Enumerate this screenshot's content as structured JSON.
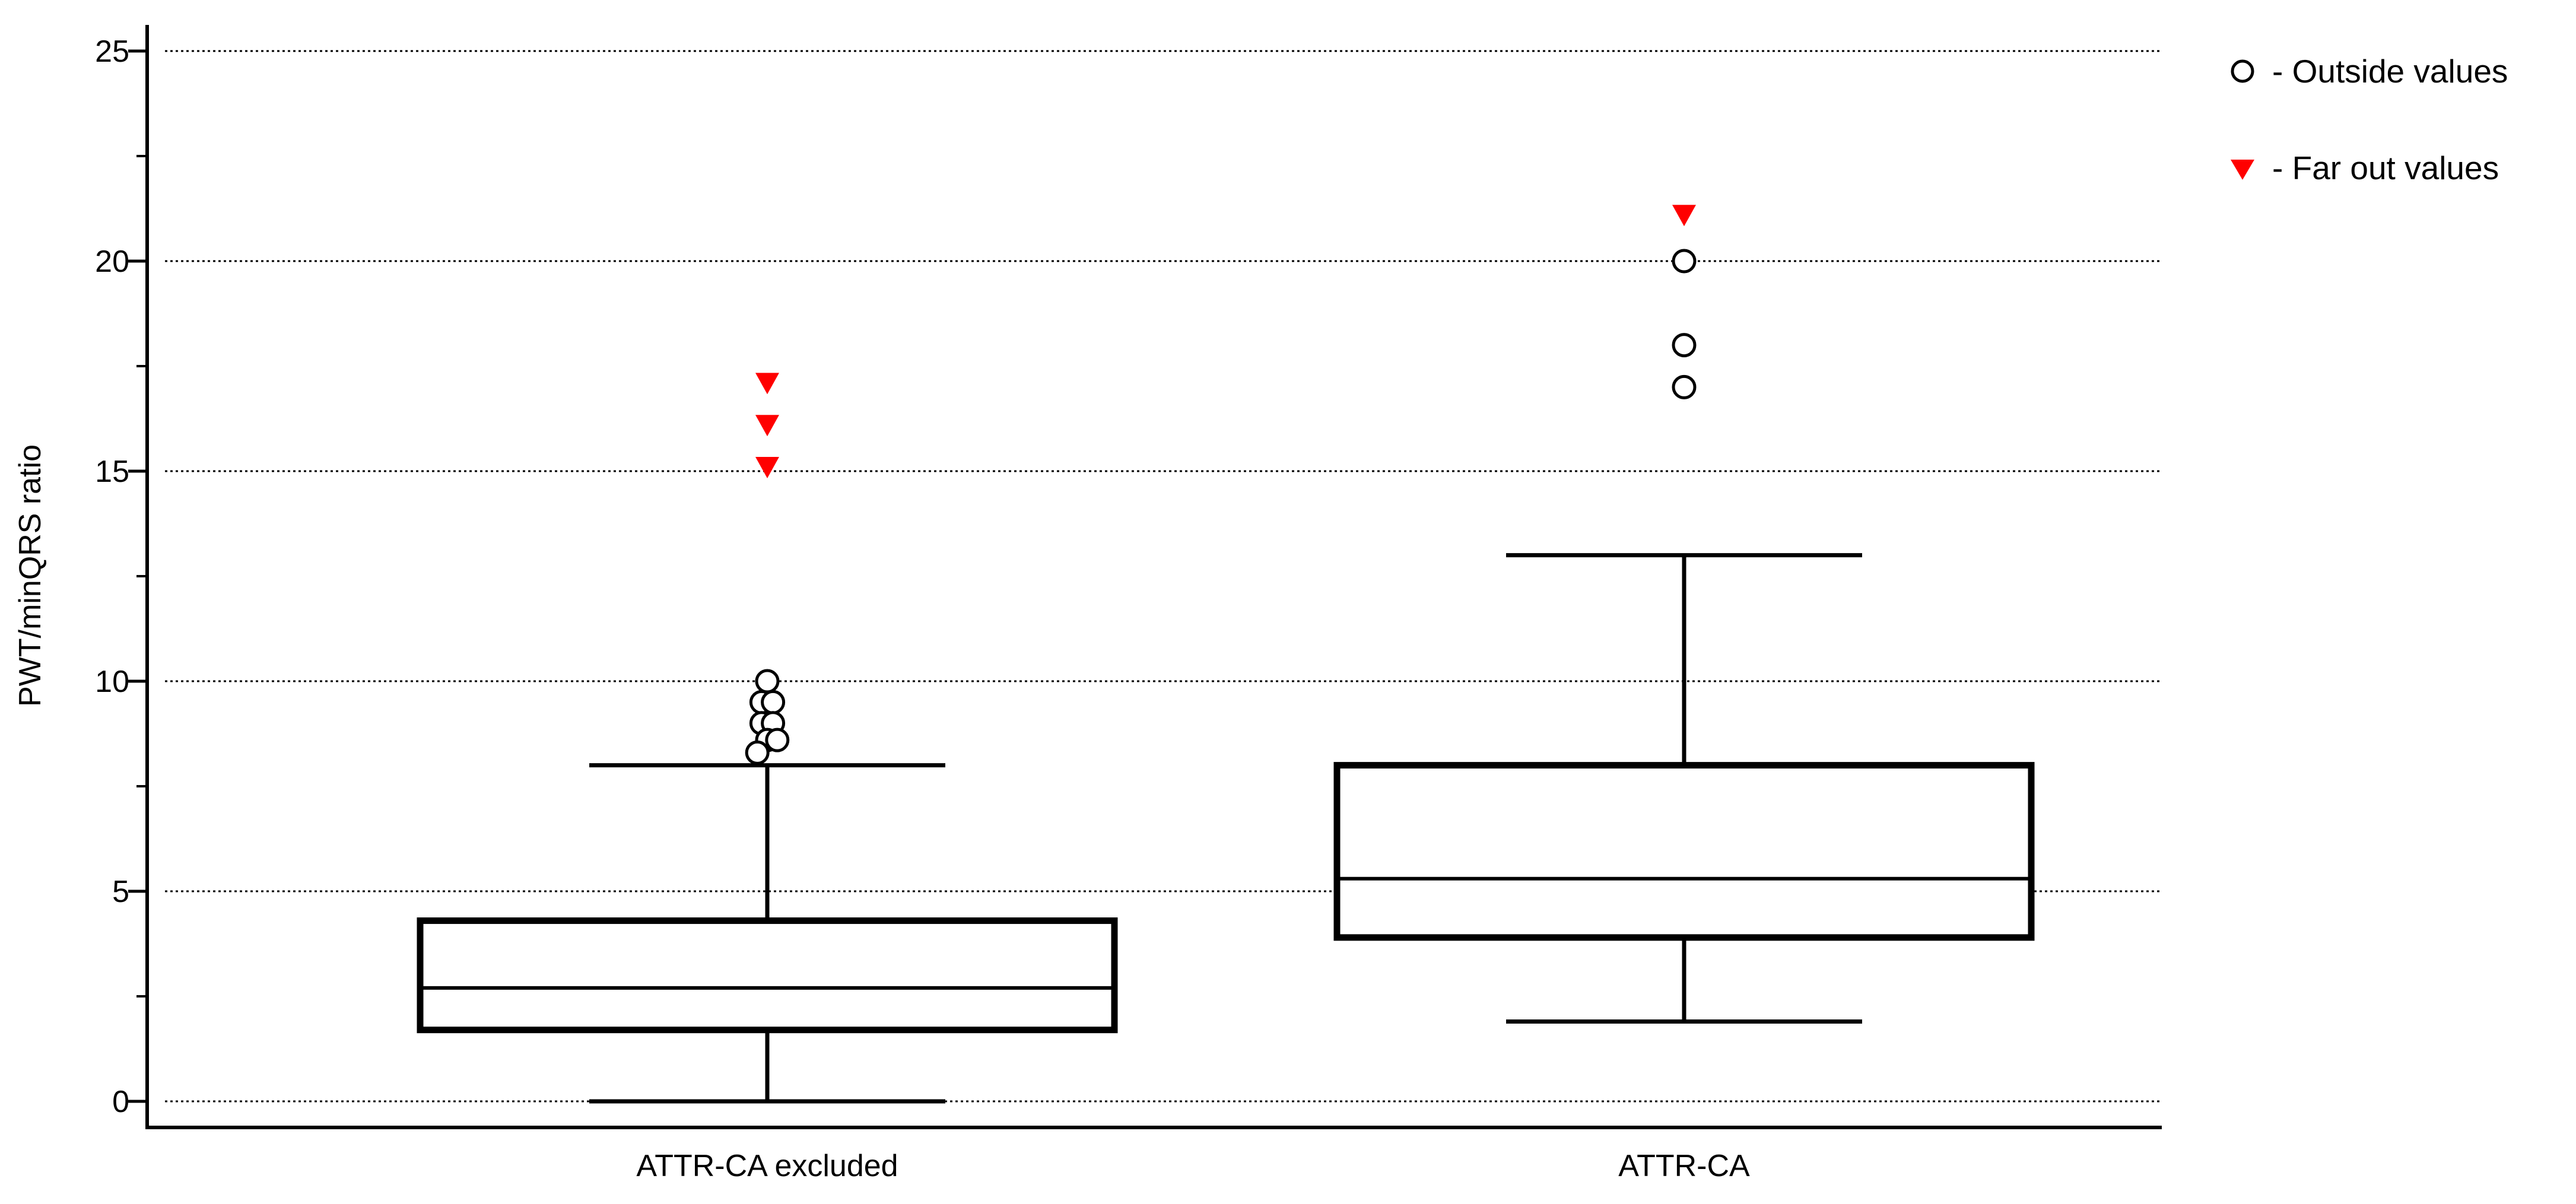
{
  "chart_data": {
    "type": "boxplot",
    "ylabel": "PWT/minQRS ratio",
    "ylim": [
      -0.6,
      25.6
    ],
    "yticks": [
      0,
      5,
      10,
      15,
      20,
      25
    ],
    "grid": true,
    "legend_position": "top-right",
    "legend": {
      "outside_label": "- Outside values",
      "far_out_label": "- Far out values"
    },
    "colors": {
      "box": "#000000",
      "grid": "#000000",
      "far_out": "#ff0000",
      "outside_fill": "#ffffff"
    },
    "categories": [
      "ATTR-CA excluded",
      "ATTR-CA"
    ],
    "boxes": [
      {
        "name": "ATTR-CA excluded",
        "whisker_low": 0,
        "q1": 1.7,
        "median": 2.7,
        "q3": 4.3,
        "whisker_high": 8,
        "outside_values": [
          {
            "x": 0,
            "y": 10
          },
          {
            "x": -0.4,
            "y": 9.5
          },
          {
            "x": 0.4,
            "y": 9.5
          },
          {
            "x": -0.4,
            "y": 9
          },
          {
            "x": 0.4,
            "y": 9
          },
          {
            "x": 0,
            "y": 8.6
          },
          {
            "x": 0.7,
            "y": 8.6
          },
          {
            "x": -0.7,
            "y": 8.3
          }
        ],
        "far_out_values": [
          17,
          16,
          15
        ]
      },
      {
        "name": "ATTR-CA",
        "whisker_low": 1.9,
        "q1": 3.9,
        "median": 5.3,
        "q3": 8,
        "whisker_high": 13,
        "outside_values": [
          {
            "x": 0,
            "y": 20
          },
          {
            "x": 0,
            "y": 18
          },
          {
            "x": 0,
            "y": 17
          }
        ],
        "far_out_values": [
          21
        ]
      }
    ]
  }
}
